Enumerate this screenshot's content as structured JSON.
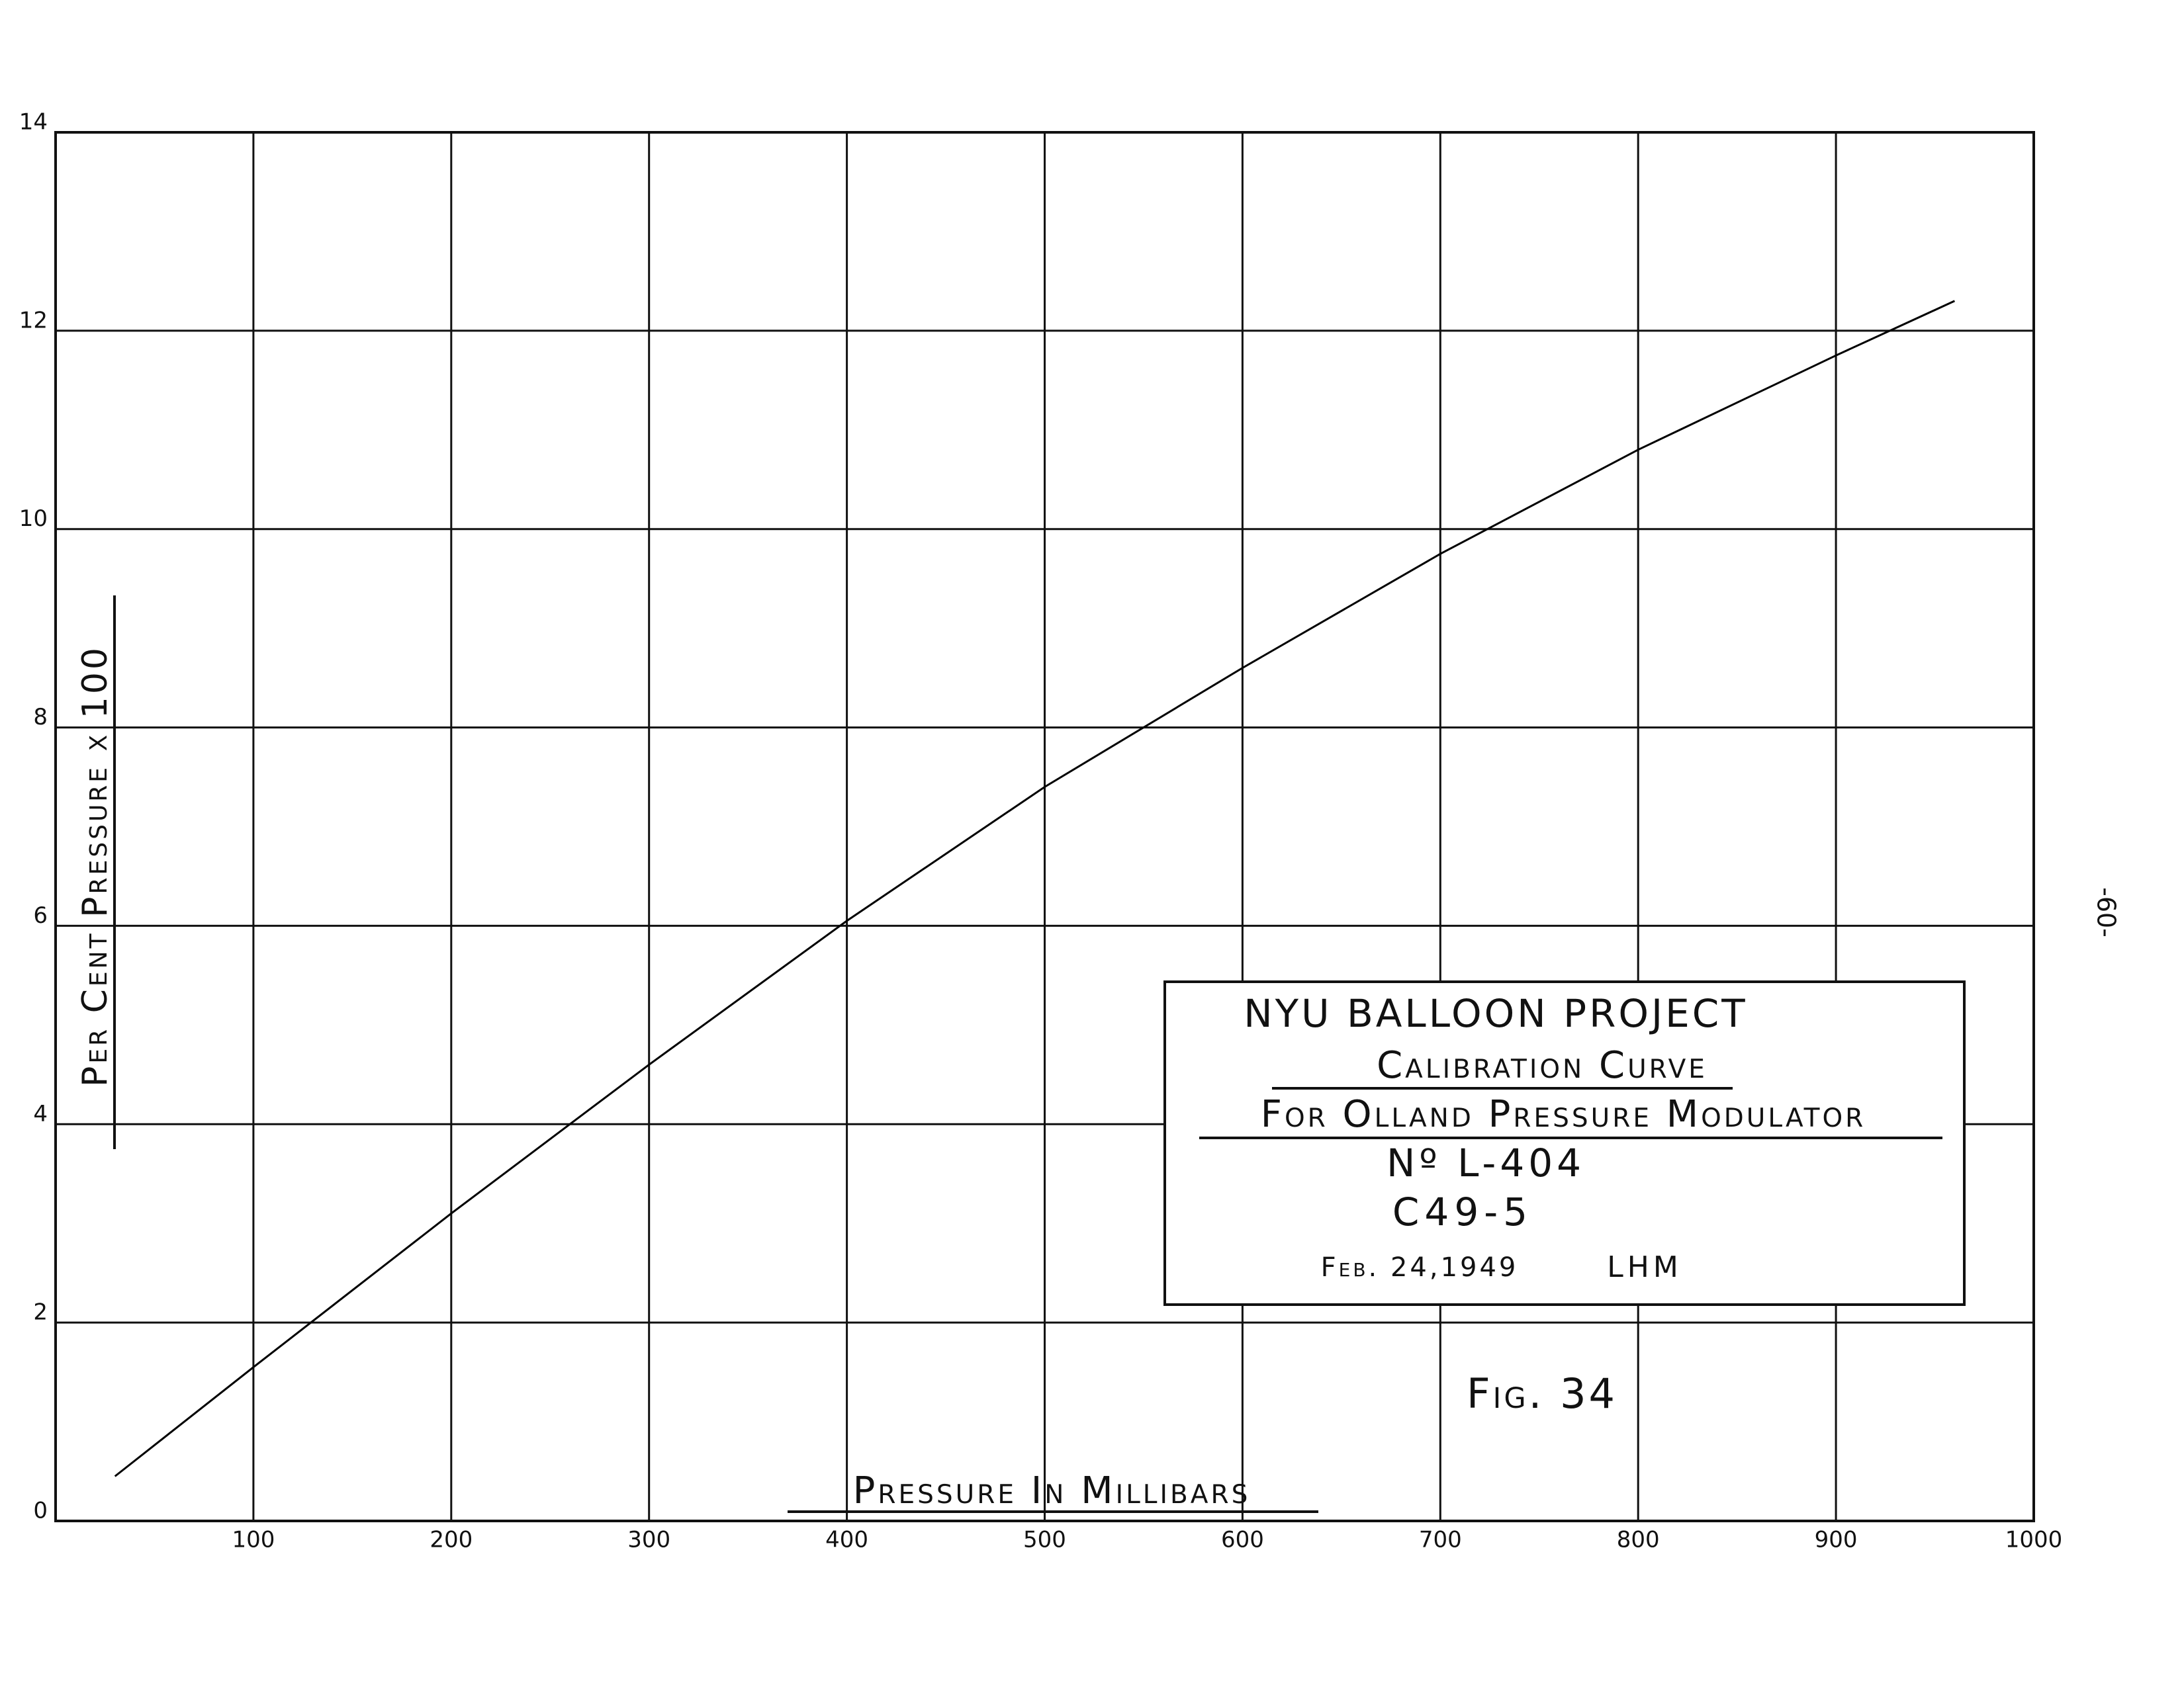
{
  "chart_data": {
    "type": "line",
    "title": "NYU BALLOON PROJECT",
    "subtitle": [
      "Calibration Curve",
      "For Olland Pressure Modulator",
      "Nº L-404",
      "C49-5"
    ],
    "date": "Feb. 24,1949",
    "author": "LHM",
    "figure_label": "Fig. 34",
    "page_number": "-60-",
    "x_label": "Pressure In Millibars",
    "y_label": "Per Cent Pressure x 100",
    "x": [
      30,
      100,
      200,
      300,
      400,
      500,
      600,
      700,
      800,
      900,
      960
    ],
    "values": [
      0.45,
      1.55,
      3.1,
      4.6,
      6.05,
      7.4,
      8.6,
      9.75,
      10.8,
      11.75,
      12.3
    ],
    "color": "#000000",
    "xlim": [
      0,
      1000
    ],
    "ylim": [
      0,
      14
    ],
    "xticks": [
      100,
      200,
      300,
      400,
      500,
      600,
      700,
      800,
      900,
      1000
    ],
    "yticks": [
      0,
      2,
      4,
      6,
      8,
      10,
      12,
      14
    ],
    "grid": true
  }
}
